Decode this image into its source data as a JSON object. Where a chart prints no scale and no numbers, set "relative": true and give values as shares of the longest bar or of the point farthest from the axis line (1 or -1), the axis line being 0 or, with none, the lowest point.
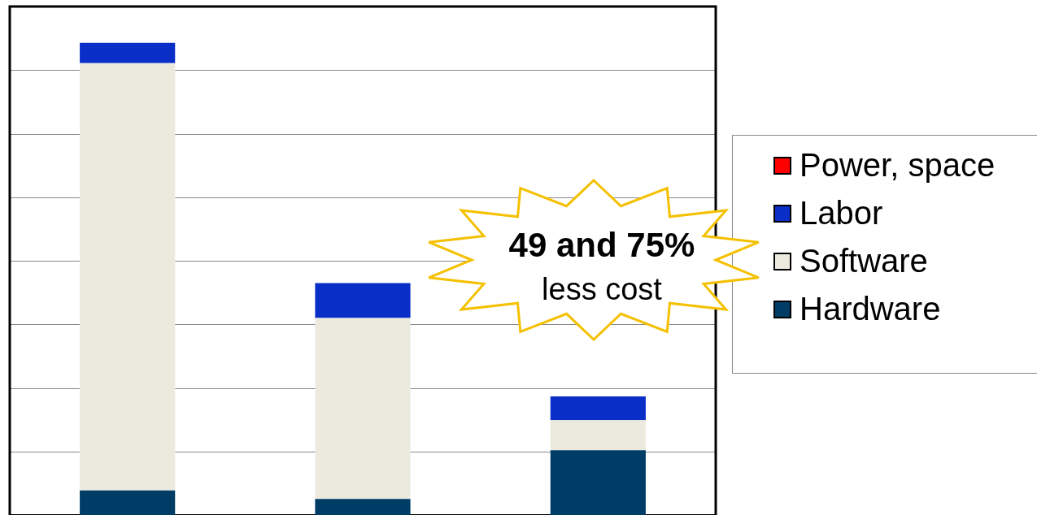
{
  "chart_data": {
    "type": "bar",
    "relative": true,
    "stacked": true,
    "grid": "y",
    "legend": "right",
    "categories": [
      null,
      null,
      null
    ],
    "series": [
      {
        "name": "Hardware",
        "color": "#003d66",
        "values": [
          0.052,
          0.034,
          0.137
        ]
      },
      {
        "name": "Software",
        "color": "#eceadf",
        "values": [
          0.905,
          0.383,
          0.064
        ]
      },
      {
        "name": "Labor",
        "color": "#0a2ec8",
        "values": [
          0.043,
          0.074,
          0.05
        ]
      },
      {
        "name": "Power, space",
        "color": "#ff0000",
        "values": [
          null,
          null,
          null
        ]
      }
    ],
    "annotations": [
      "49 and 75%",
      "less cost"
    ]
  }
}
